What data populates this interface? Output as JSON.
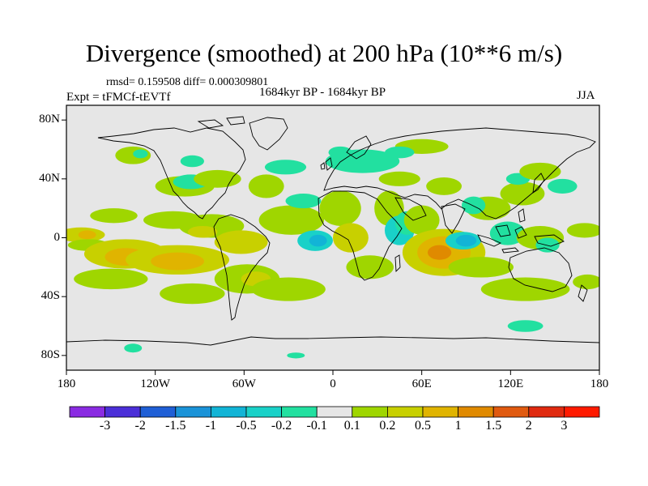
{
  "title": "Divergence (smoothed) at 200 hPa (10**6 m/s)",
  "stats": "rmsd= 0.159508  diff= 0.000309801",
  "experiment": "Expt = tFMCf-tEVTf",
  "period": "1684kyr BP - 1684kyr BP",
  "season": "JJA",
  "colors": {
    "background_field": "#e6e6e6",
    "coastline": "#000000"
  },
  "y_axis": {
    "ticks": [
      {
        "label": "80N",
        "lat": 80
      },
      {
        "label": "40N",
        "lat": 40
      },
      {
        "label": "0",
        "lat": 0
      },
      {
        "label": "40S",
        "lat": -40
      },
      {
        "label": "80S",
        "lat": -80
      }
    ]
  },
  "x_axis": {
    "ticks": [
      {
        "label": "180",
        "lon": -180
      },
      {
        "label": "120W",
        "lon": -120
      },
      {
        "label": "60W",
        "lon": -60
      },
      {
        "label": "0",
        "lon": 0
      },
      {
        "label": "60E",
        "lon": 60
      },
      {
        "label": "120E",
        "lon": 120
      },
      {
        "label": "180",
        "lon": 180
      }
    ]
  },
  "colorbar": {
    "labels": [
      "-3",
      "-2",
      "-1.5",
      "-1",
      "-0.5",
      "-0.2",
      "-0.1",
      "0.1",
      "0.2",
      "0.5",
      "1",
      "1.5",
      "2",
      "3"
    ],
    "colors": [
      "#8a2be2",
      "#4b2fd8",
      "#1f5fd6",
      "#1a93d8",
      "#12b4d6",
      "#19d1c8",
      "#22e0a0",
      "#e6e6e6",
      "#9fd600",
      "#c8d000",
      "#e0b400",
      "#e08a00",
      "#e05a10",
      "#e02a10",
      "#ff1a00"
    ]
  },
  "map_data": {
    "type": "filled-contour",
    "lon_range": [
      -180,
      180
    ],
    "lat_range": [
      -90,
      90
    ],
    "regions": [
      {
        "class": 9,
        "lon": -170,
        "lat": 2,
        "rx": 16,
        "ry": 5
      },
      {
        "class": 10,
        "lon": -166,
        "lat": 2,
        "rx": 6,
        "ry": 3
      },
      {
        "class": 8,
        "lon": -148,
        "lat": 15,
        "rx": 16,
        "ry": 5
      },
      {
        "class": 8,
        "lon": -165,
        "lat": -5,
        "rx": 14,
        "ry": 4
      },
      {
        "class": 9,
        "lon": -140,
        "lat": -11,
        "rx": 28,
        "ry": 10
      },
      {
        "class": 10,
        "lon": -140,
        "lat": -13,
        "rx": 14,
        "ry": 6
      },
      {
        "class": 8,
        "lon": -150,
        "lat": -28,
        "rx": 25,
        "ry": 7
      },
      {
        "class": 9,
        "lon": -105,
        "lat": -15,
        "rx": 35,
        "ry": 10
      },
      {
        "class": 10,
        "lon": -105,
        "lat": -16,
        "rx": 18,
        "ry": 6
      },
      {
        "class": 8,
        "lon": -100,
        "lat": 35,
        "rx": 20,
        "ry": 7
      },
      {
        "class": 6,
        "lon": -96,
        "lat": 38,
        "rx": 12,
        "ry": 5
      },
      {
        "class": 8,
        "lon": -78,
        "lat": 40,
        "rx": 16,
        "ry": 6
      },
      {
        "class": 6,
        "lon": -95,
        "lat": 52,
        "rx": 8,
        "ry": 4
      },
      {
        "class": 8,
        "lon": -108,
        "lat": 12,
        "rx": 20,
        "ry": 6
      },
      {
        "class": 8,
        "lon": -82,
        "lat": 8,
        "rx": 22,
        "ry": 8
      },
      {
        "class": 9,
        "lon": -88,
        "lat": 4,
        "rx": 10,
        "ry": 4
      },
      {
        "class": 9,
        "lon": -62,
        "lat": -3,
        "rx": 18,
        "ry": 8
      },
      {
        "class": 8,
        "lon": -58,
        "lat": -28,
        "rx": 22,
        "ry": 10
      },
      {
        "class": 9,
        "lon": -52,
        "lat": -28,
        "rx": 10,
        "ry": 5
      },
      {
        "class": 8,
        "lon": -95,
        "lat": -38,
        "rx": 22,
        "ry": 7
      },
      {
        "class": 8,
        "lon": -30,
        "lat": -35,
        "rx": 25,
        "ry": 8
      },
      {
        "class": 8,
        "lon": -45,
        "lat": 35,
        "rx": 12,
        "ry": 8
      },
      {
        "class": 8,
        "lon": -28,
        "lat": 12,
        "rx": 22,
        "ry": 10
      },
      {
        "class": 6,
        "lon": -20,
        "lat": 25,
        "rx": 12,
        "ry": 5
      },
      {
        "class": 5,
        "lon": -12,
        "lat": -2,
        "rx": 12,
        "ry": 7
      },
      {
        "class": 4,
        "lon": -10,
        "lat": -2,
        "rx": 6,
        "ry": 4
      },
      {
        "class": 8,
        "lon": 5,
        "lat": 20,
        "rx": 14,
        "ry": 12
      },
      {
        "class": 9,
        "lon": 12,
        "lat": 0,
        "rx": 12,
        "ry": 10
      },
      {
        "class": 8,
        "lon": 25,
        "lat": -20,
        "rx": 16,
        "ry": 8
      },
      {
        "class": 6,
        "lon": 20,
        "lat": 52,
        "rx": 25,
        "ry": 8
      },
      {
        "class": 8,
        "lon": 60,
        "lat": 62,
        "rx": 18,
        "ry": 5
      },
      {
        "class": 8,
        "lon": 45,
        "lat": 40,
        "rx": 14,
        "ry": 5
      },
      {
        "class": 8,
        "lon": 38,
        "lat": 20,
        "rx": 10,
        "ry": 12
      },
      {
        "class": 5,
        "lon": 45,
        "lat": 5,
        "rx": 10,
        "ry": 10
      },
      {
        "class": 6,
        "lon": 50,
        "lat": 10,
        "rx": 8,
        "ry": 8
      },
      {
        "class": 8,
        "lon": 75,
        "lat": 35,
        "rx": 12,
        "ry": 6
      },
      {
        "class": 8,
        "lon": 60,
        "lat": 12,
        "rx": 12,
        "ry": 10
      },
      {
        "class": 9,
        "lon": 75,
        "lat": -10,
        "rx": 28,
        "ry": 16
      },
      {
        "class": 10,
        "lon": 75,
        "lat": -10,
        "rx": 18,
        "ry": 11
      },
      {
        "class": 11,
        "lon": 72,
        "lat": -10,
        "rx": 8,
        "ry": 5
      },
      {
        "class": 5,
        "lon": 88,
        "lat": -2,
        "rx": 12,
        "ry": 6
      },
      {
        "class": 4,
        "lon": 90,
        "lat": -2,
        "rx": 7,
        "ry": 4
      },
      {
        "class": 8,
        "lon": 100,
        "lat": -20,
        "rx": 22,
        "ry": 7
      },
      {
        "class": 6,
        "lon": 118,
        "lat": 3,
        "rx": 12,
        "ry": 8
      },
      {
        "class": 8,
        "lon": 105,
        "lat": 20,
        "rx": 15,
        "ry": 8
      },
      {
        "class": 6,
        "lon": 95,
        "lat": 22,
        "rx": 8,
        "ry": 6
      },
      {
        "class": 8,
        "lon": 128,
        "lat": 30,
        "rx": 15,
        "ry": 8
      },
      {
        "class": 6,
        "lon": 125,
        "lat": 40,
        "rx": 8,
        "ry": 4
      },
      {
        "class": 8,
        "lon": 140,
        "lat": 45,
        "rx": 14,
        "ry": 6
      },
      {
        "class": 6,
        "lon": 155,
        "lat": 35,
        "rx": 10,
        "ry": 5
      },
      {
        "class": 8,
        "lon": 140,
        "lat": 0,
        "rx": 16,
        "ry": 8
      },
      {
        "class": 6,
        "lon": 145,
        "lat": -5,
        "rx": 8,
        "ry": 5
      },
      {
        "class": 8,
        "lon": 130,
        "lat": -35,
        "rx": 30,
        "ry": 8
      },
      {
        "class": 8,
        "lon": 170,
        "lat": 5,
        "rx": 12,
        "ry": 5
      },
      {
        "class": 8,
        "lon": 172,
        "lat": -30,
        "rx": 10,
        "ry": 5
      },
      {
        "class": 8,
        "lon": -135,
        "lat": 56,
        "rx": 12,
        "ry": 6
      },
      {
        "class": 6,
        "lon": -130,
        "lat": 57,
        "rx": 5,
        "ry": 3
      },
      {
        "class": 6,
        "lon": -32,
        "lat": 48,
        "rx": 14,
        "ry": 5
      },
      {
        "class": 6,
        "lon": 5,
        "lat": 58,
        "rx": 8,
        "ry": 4
      },
      {
        "class": 6,
        "lon": 45,
        "lat": 58,
        "rx": 10,
        "ry": 4
      },
      {
        "class": 6,
        "lon": 130,
        "lat": -60,
        "rx": 12,
        "ry": 4
      },
      {
        "class": 6,
        "lon": -135,
        "lat": -75,
        "rx": 6,
        "ry": 3
      },
      {
        "class": 6,
        "lon": -25,
        "lat": -80,
        "rx": 6,
        "ry": 2
      }
    ]
  }
}
